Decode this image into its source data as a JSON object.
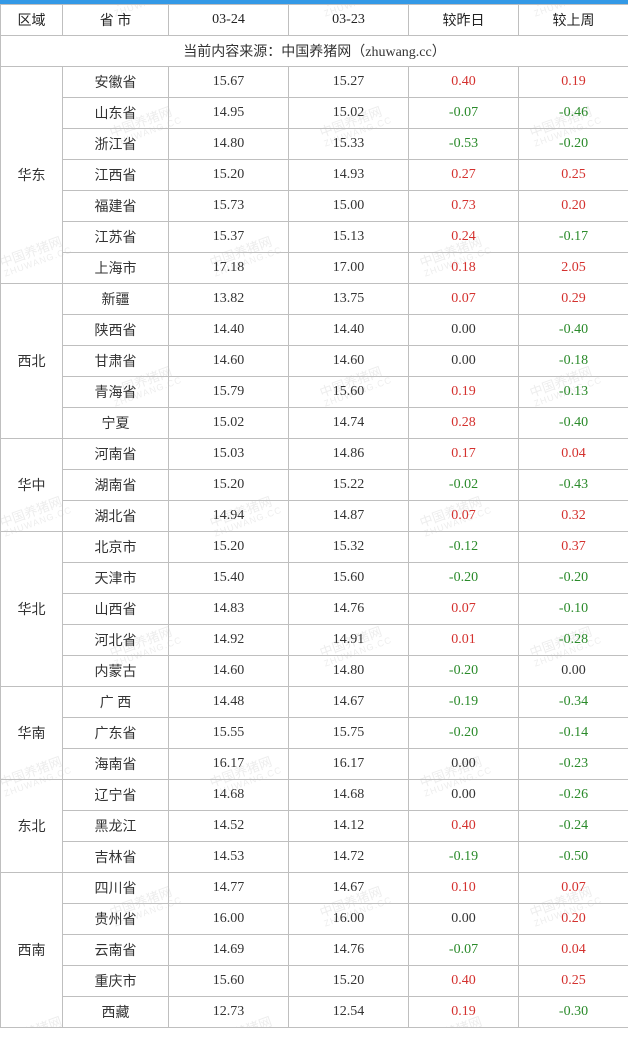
{
  "headers": {
    "region": "区域",
    "province": "省 市",
    "date1": "03-24",
    "date2": "03-23",
    "vs_day": "较昨日",
    "vs_week": "较上周"
  },
  "source": {
    "prefix": "当前内容来源：",
    "site_name": "中国养猪网",
    "site_domain": "（zhuwang.cc）"
  },
  "watermark": {
    "text_cn": "中国养猪网",
    "text_en": "ZHUWANG.CC"
  },
  "colors": {
    "header_border_top": "#3399e6",
    "cell_border": "#bfbfbf",
    "positive": "#d4312e",
    "negative": "#2a8a2a",
    "neutral": "#333333",
    "watermark": "#cccccc",
    "background": "#ffffff"
  },
  "regions": [
    {
      "name": "华东",
      "rows": [
        {
          "province": "安徽省",
          "d1": "15.67",
          "d2": "15.27",
          "vd": "0.40",
          "vd_sign": 1,
          "vw": "0.19",
          "vw_sign": 1
        },
        {
          "province": "山东省",
          "d1": "14.95",
          "d2": "15.02",
          "vd": "-0.07",
          "vd_sign": -1,
          "vw": "-0.46",
          "vw_sign": -1
        },
        {
          "province": "浙江省",
          "d1": "14.80",
          "d2": "15.33",
          "vd": "-0.53",
          "vd_sign": -1,
          "vw": "-0.20",
          "vw_sign": -1
        },
        {
          "province": "江西省",
          "d1": "15.20",
          "d2": "14.93",
          "vd": "0.27",
          "vd_sign": 1,
          "vw": "0.25",
          "vw_sign": 1
        },
        {
          "province": "福建省",
          "d1": "15.73",
          "d2": "15.00",
          "vd": "0.73",
          "vd_sign": 1,
          "vw": "0.20",
          "vw_sign": 1
        },
        {
          "province": "江苏省",
          "d1": "15.37",
          "d2": "15.13",
          "vd": "0.24",
          "vd_sign": 1,
          "vw": "-0.17",
          "vw_sign": -1
        },
        {
          "province": "上海市",
          "d1": "17.18",
          "d2": "17.00",
          "vd": "0.18",
          "vd_sign": 1,
          "vw": "2.05",
          "vw_sign": 1
        }
      ]
    },
    {
      "name": "西北",
      "rows": [
        {
          "province": "新疆",
          "d1": "13.82",
          "d2": "13.75",
          "vd": "0.07",
          "vd_sign": 1,
          "vw": "0.29",
          "vw_sign": 1
        },
        {
          "province": "陕西省",
          "d1": "14.40",
          "d2": "14.40",
          "vd": "0.00",
          "vd_sign": 0,
          "vw": "-0.40",
          "vw_sign": -1
        },
        {
          "province": "甘肃省",
          "d1": "14.60",
          "d2": "14.60",
          "vd": "0.00",
          "vd_sign": 0,
          "vw": "-0.18",
          "vw_sign": -1
        },
        {
          "province": "青海省",
          "d1": "15.79",
          "d2": "15.60",
          "vd": "0.19",
          "vd_sign": 1,
          "vw": "-0.13",
          "vw_sign": -1
        },
        {
          "province": "宁夏",
          "d1": "15.02",
          "d2": "14.74",
          "vd": "0.28",
          "vd_sign": 1,
          "vw": "-0.40",
          "vw_sign": -1
        }
      ]
    },
    {
      "name": "华中",
      "rows": [
        {
          "province": "河南省",
          "d1": "15.03",
          "d2": "14.86",
          "vd": "0.17",
          "vd_sign": 1,
          "vw": "0.04",
          "vw_sign": 1
        },
        {
          "province": "湖南省",
          "d1": "15.20",
          "d2": "15.22",
          "vd": "-0.02",
          "vd_sign": -1,
          "vw": "-0.43",
          "vw_sign": -1
        },
        {
          "province": "湖北省",
          "d1": "14.94",
          "d2": "14.87",
          "vd": "0.07",
          "vd_sign": 1,
          "vw": "0.32",
          "vw_sign": 1
        }
      ]
    },
    {
      "name": "华北",
      "rows": [
        {
          "province": "北京市",
          "d1": "15.20",
          "d2": "15.32",
          "vd": "-0.12",
          "vd_sign": -1,
          "vw": "0.37",
          "vw_sign": 1
        },
        {
          "province": "天津市",
          "d1": "15.40",
          "d2": "15.60",
          "vd": "-0.20",
          "vd_sign": -1,
          "vw": "-0.20",
          "vw_sign": -1
        },
        {
          "province": "山西省",
          "d1": "14.83",
          "d2": "14.76",
          "vd": "0.07",
          "vd_sign": 1,
          "vw": "-0.10",
          "vw_sign": -1
        },
        {
          "province": "河北省",
          "d1": "14.92",
          "d2": "14.91",
          "vd": "0.01",
          "vd_sign": 1,
          "vw": "-0.28",
          "vw_sign": -1
        },
        {
          "province": "内蒙古",
          "d1": "14.60",
          "d2": "14.80",
          "vd": "-0.20",
          "vd_sign": -1,
          "vw": "0.00",
          "vw_sign": 0
        }
      ]
    },
    {
      "name": "华南",
      "rows": [
        {
          "province": "广 西",
          "d1": "14.48",
          "d2": "14.67",
          "vd": "-0.19",
          "vd_sign": -1,
          "vw": "-0.34",
          "vw_sign": -1
        },
        {
          "province": "广东省",
          "d1": "15.55",
          "d2": "15.75",
          "vd": "-0.20",
          "vd_sign": -1,
          "vw": "-0.14",
          "vw_sign": -1
        },
        {
          "province": "海南省",
          "d1": "16.17",
          "d2": "16.17",
          "vd": "0.00",
          "vd_sign": 0,
          "vw": "-0.23",
          "vw_sign": -1
        }
      ]
    },
    {
      "name": "东北",
      "rows": [
        {
          "province": "辽宁省",
          "d1": "14.68",
          "d2": "14.68",
          "vd": "0.00",
          "vd_sign": 0,
          "vw": "-0.26",
          "vw_sign": -1
        },
        {
          "province": "黑龙江",
          "d1": "14.52",
          "d2": "14.12",
          "vd": "0.40",
          "vd_sign": 1,
          "vw": "-0.24",
          "vw_sign": -1
        },
        {
          "province": "吉林省",
          "d1": "14.53",
          "d2": "14.72",
          "vd": "-0.19",
          "vd_sign": -1,
          "vw": "-0.50",
          "vw_sign": -1
        }
      ]
    },
    {
      "name": "西南",
      "rows": [
        {
          "province": "四川省",
          "d1": "14.77",
          "d2": "14.67",
          "vd": "0.10",
          "vd_sign": 1,
          "vw": "0.07",
          "vw_sign": 1
        },
        {
          "province": "贵州省",
          "d1": "16.00",
          "d2": "16.00",
          "vd": "0.00",
          "vd_sign": 0,
          "vw": "0.20",
          "vw_sign": 1
        },
        {
          "province": "云南省",
          "d1": "14.69",
          "d2": "14.76",
          "vd": "-0.07",
          "vd_sign": -1,
          "vw": "0.04",
          "vw_sign": 1
        },
        {
          "province": "重庆市",
          "d1": "15.60",
          "d2": "15.20",
          "vd": "0.40",
          "vd_sign": 1,
          "vw": "0.25",
          "vw_sign": 1
        },
        {
          "province": "西藏",
          "d1": "12.73",
          "d2": "12.54",
          "vd": "0.19",
          "vd_sign": 1,
          "vw": "-0.30",
          "vw_sign": -1
        }
      ]
    }
  ]
}
